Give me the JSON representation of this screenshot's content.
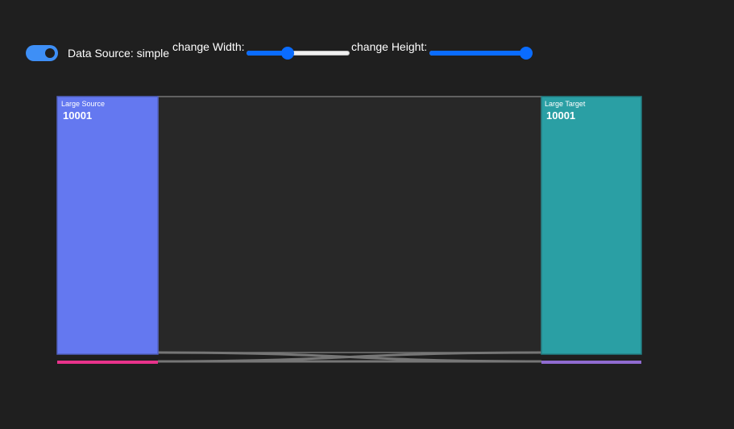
{
  "controls": {
    "data_source_label": "Data Source: simple",
    "data_source_on": true,
    "width_label": "change Width:",
    "width_value": 0.38,
    "height_label": "change Height:",
    "height_value": 1.0,
    "slider_color": "#0a6cff",
    "toggle_color": "#3e8ff6"
  },
  "sankey": {
    "nodes": [
      {
        "name": "Large Source",
        "value": "10001",
        "color": "#6478f0"
      },
      {
        "name": "Large Target",
        "value": "10001",
        "color": "#2a9fa4"
      },
      {
        "name": "",
        "value": "",
        "color": "#e8338b"
      },
      {
        "name": "",
        "value": "",
        "color": "#8f6bd0"
      }
    ],
    "link_color": "#282828",
    "link_stroke": "#767676"
  }
}
